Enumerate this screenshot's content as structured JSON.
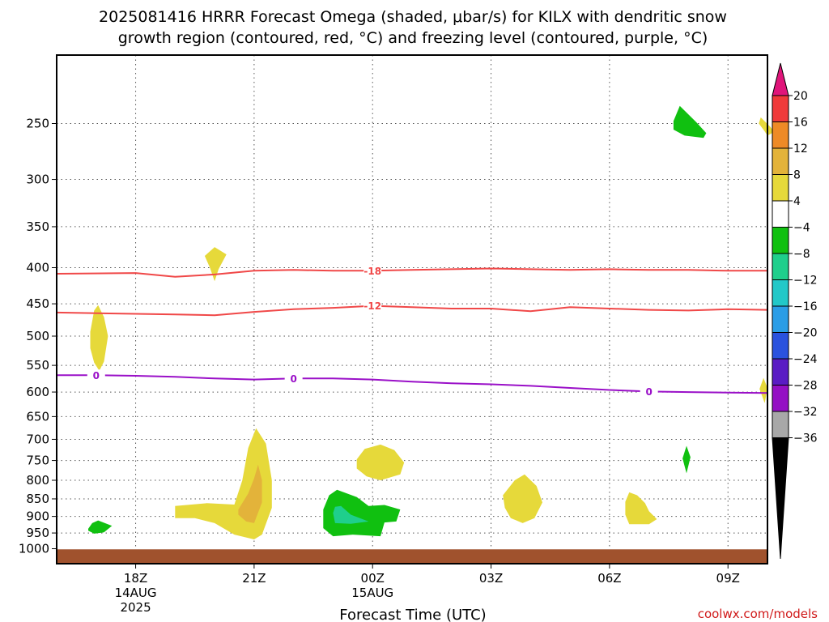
{
  "header": {
    "title_line1": "2025081416 HRRR Forecast Omega (shaded, μbar/s) for KILX with dendritic snow",
    "title_line2": "growth region (contoured, red, °C) and freezing level (contoured, purple, °C)"
  },
  "credit": "coolwx.com/models",
  "chart_data": {
    "type": "time-height contour",
    "title": "2025081416 HRRR Forecast Omega (shaded, μbar/s) for KILX with dendritic snow growth region (contoured, red, °C) and freezing level (contoured, purple, °C)",
    "xlabel": "Forecast Time (UTC)",
    "ylabel": "",
    "x_units": "hours since 2025081416 (16Z 14AUG 2025)",
    "xlim": [
      0,
      18
    ],
    "ylim_hpa": [
      1050,
      200
    ],
    "y_scale": "log pressure",
    "grid": true,
    "x_ticks": [
      {
        "x": 2,
        "label": "18Z",
        "sub1": "14AUG",
        "sub2": "2025"
      },
      {
        "x": 5,
        "label": "21Z",
        "sub1": "",
        "sub2": ""
      },
      {
        "x": 8,
        "label": "00Z",
        "sub1": "15AUG",
        "sub2": ""
      },
      {
        "x": 11,
        "label": "03Z",
        "sub1": "",
        "sub2": ""
      },
      {
        "x": 14,
        "label": "06Z",
        "sub1": "",
        "sub2": ""
      },
      {
        "x": 17,
        "label": "09Z",
        "sub1": "",
        "sub2": ""
      }
    ],
    "y_ticks": [
      250,
      300,
      350,
      400,
      450,
      500,
      550,
      600,
      650,
      700,
      750,
      800,
      850,
      900,
      950,
      1000
    ],
    "gridlines_p": [
      250,
      300,
      350,
      400,
      450,
      500,
      550,
      600,
      650,
      700,
      750,
      800,
      850,
      900,
      950
    ],
    "colorbar": {
      "labels": [
        "20",
        "16",
        "12",
        "8",
        "4",
        "−4",
        "−8",
        "−12",
        "−16",
        "−20",
        "−24",
        "−28",
        "−32",
        "−36"
      ],
      "colors": [
        "#f03a3a",
        "#ee8a26",
        "#e3b33a",
        "#e6d93a",
        "#ffffff",
        "#10c010",
        "#1fcf8c",
        "#22c8c8",
        "#2a9de6",
        "#2a52de",
        "#5a1cc4",
        "#9410c4",
        "#a8a8a8"
      ],
      "top_arrow_color": "#e0157a",
      "bottom_arrow_color": "#000000"
    },
    "contour_lines": [
      {
        "label": "-18",
        "color": "#f04848",
        "points": [
          [
            0,
            408
          ],
          [
            2,
            407
          ],
          [
            3,
            412
          ],
          [
            4,
            409
          ],
          [
            5,
            404
          ],
          [
            6,
            403
          ],
          [
            7,
            404
          ],
          [
            8,
            404
          ],
          [
            9,
            403
          ],
          [
            10,
            402
          ],
          [
            11,
            401
          ],
          [
            12,
            402
          ],
          [
            13,
            403
          ],
          [
            14,
            402
          ],
          [
            15,
            403
          ],
          [
            16,
            403
          ],
          [
            17,
            404
          ],
          [
            18,
            404
          ]
        ],
        "label_positions": [
          [
            8,
            404
          ]
        ]
      },
      {
        "label": "-12",
        "color": "#f04848",
        "points": [
          [
            0,
            463
          ],
          [
            2,
            465
          ],
          [
            3,
            466
          ],
          [
            4,
            467
          ],
          [
            5,
            462
          ],
          [
            6,
            458
          ],
          [
            7,
            456
          ],
          [
            8,
            453
          ],
          [
            9,
            455
          ],
          [
            10,
            457
          ],
          [
            11,
            457
          ],
          [
            12,
            461
          ],
          [
            13,
            455
          ],
          [
            14,
            457
          ],
          [
            15,
            459
          ],
          [
            16,
            460
          ],
          [
            17,
            458
          ],
          [
            18,
            459
          ]
        ],
        "label_positions": [
          [
            8,
            453
          ]
        ]
      },
      {
        "label": "0",
        "color": "#9a10c8",
        "points": [
          [
            0,
            568
          ],
          [
            1,
            568
          ],
          [
            2,
            569
          ],
          [
            3,
            571
          ],
          [
            4,
            574
          ],
          [
            5,
            576
          ],
          [
            6,
            574
          ],
          [
            7,
            574
          ],
          [
            8,
            576
          ],
          [
            9,
            580
          ],
          [
            10,
            583
          ],
          [
            11,
            585
          ],
          [
            12,
            588
          ],
          [
            13,
            592
          ],
          [
            14,
            596
          ],
          [
            15,
            599
          ],
          [
            16,
            600
          ],
          [
            17,
            601
          ],
          [
            18,
            602
          ]
        ],
        "label_positions": [
          [
            1,
            568
          ],
          [
            6,
            574
          ],
          [
            15,
            599
          ]
        ]
      }
    ],
    "shaded_regions": [
      {
        "value": "4 to 8",
        "color": "#e6d93a",
        "points": [
          [
            17.83,
            245
          ],
          [
            18.08,
            253
          ],
          [
            18.17,
            257
          ],
          [
            18.0,
            260
          ],
          [
            17.92,
            256
          ],
          [
            17.78,
            250
          ]
        ]
      },
      {
        "value": "4 to 8",
        "color": "#e6d93a",
        "points": [
          [
            0.85,
            493
          ],
          [
            0.95,
            460
          ],
          [
            1.05,
            452
          ],
          [
            1.2,
            470
          ],
          [
            1.3,
            500
          ],
          [
            1.2,
            543
          ],
          [
            1.08,
            560
          ],
          [
            0.95,
            545
          ],
          [
            0.85,
            520
          ]
        ]
      },
      {
        "value": "4 to 8",
        "color": "#e6d93a",
        "points": [
          [
            3.75,
            385
          ],
          [
            4.0,
            374
          ],
          [
            4.3,
            383
          ],
          [
            4.1,
            402
          ],
          [
            4.0,
            418
          ],
          [
            3.88,
            400
          ]
        ]
      },
      {
        "value": "4 to 8",
        "color": "#e6d93a",
        "points": [
          [
            7.6,
            747
          ],
          [
            7.8,
            722
          ],
          [
            8.2,
            712
          ],
          [
            8.55,
            725
          ],
          [
            8.8,
            755
          ],
          [
            8.7,
            785
          ],
          [
            8.2,
            800
          ],
          [
            7.85,
            790
          ],
          [
            7.6,
            770
          ]
        ]
      },
      {
        "value": "4 to 8",
        "color": "#e6d93a",
        "points": [
          [
            3.0,
            870
          ],
          [
            3.8,
            862
          ],
          [
            4.5,
            866
          ],
          [
            4.7,
            800
          ],
          [
            4.85,
            720
          ],
          [
            5.05,
            675
          ],
          [
            5.3,
            710
          ],
          [
            5.45,
            800
          ],
          [
            5.45,
            875
          ],
          [
            5.2,
            955
          ],
          [
            5.0,
            970
          ],
          [
            4.5,
            955
          ],
          [
            4.0,
            920
          ],
          [
            3.5,
            905
          ],
          [
            3.0,
            905
          ]
        ]
      },
      {
        "value": "4 to 8",
        "color": "#e6d93a",
        "points": [
          [
            11.3,
            840
          ],
          [
            11.6,
            800
          ],
          [
            11.85,
            785
          ],
          [
            12.15,
            815
          ],
          [
            12.3,
            860
          ],
          [
            12.1,
            905
          ],
          [
            11.8,
            920
          ],
          [
            11.5,
            905
          ],
          [
            11.35,
            875
          ]
        ]
      },
      {
        "value": "4 to 8",
        "color": "#e6d93a",
        "points": [
          [
            14.4,
            858
          ],
          [
            14.5,
            832
          ],
          [
            14.7,
            840
          ],
          [
            14.9,
            862
          ],
          [
            15.0,
            885
          ],
          [
            15.2,
            908
          ],
          [
            15.0,
            923
          ],
          [
            14.5,
            923
          ],
          [
            14.4,
            895
          ]
        ]
      },
      {
        "value": "4 to 8",
        "color": "#e6d93a",
        "points": [
          [
            17.8,
            594
          ],
          [
            17.9,
            573
          ],
          [
            18.0,
            592
          ],
          [
            17.93,
            622
          ]
        ]
      },
      {
        "value": "8 to 12",
        "color": "#e3b33a",
        "points": [
          [
            4.6,
            880
          ],
          [
            4.85,
            835
          ],
          [
            5.0,
            795
          ],
          [
            5.1,
            760
          ],
          [
            5.2,
            800
          ],
          [
            5.2,
            860
          ],
          [
            5.0,
            920
          ],
          [
            4.8,
            915
          ],
          [
            4.6,
            895
          ]
        ]
      },
      {
        "value": "-4 to -8",
        "color": "#10c010",
        "points": [
          [
            15.62,
            248
          ],
          [
            15.78,
            236
          ],
          [
            16.2,
            249
          ],
          [
            16.45,
            258
          ],
          [
            16.38,
            262
          ],
          [
            15.9,
            260
          ],
          [
            15.62,
            255
          ]
        ]
      },
      {
        "value": "-4 to -8",
        "color": "#10c010",
        "points": [
          [
            0.8,
            937
          ],
          [
            0.9,
            920
          ],
          [
            1.05,
            912
          ],
          [
            1.4,
            928
          ],
          [
            1.2,
            948
          ],
          [
            0.95,
            952
          ],
          [
            0.8,
            943
          ]
        ]
      },
      {
        "value": "-4 to -8",
        "color": "#10c010",
        "points": [
          [
            6.75,
            880
          ],
          [
            6.9,
            840
          ],
          [
            7.1,
            825
          ],
          [
            7.6,
            845
          ],
          [
            7.9,
            870
          ],
          [
            8.3,
            867
          ],
          [
            8.7,
            880
          ],
          [
            8.6,
            915
          ],
          [
            8.3,
            918
          ],
          [
            8.2,
            960
          ],
          [
            7.5,
            955
          ],
          [
            7.0,
            960
          ],
          [
            6.75,
            935
          ]
        ]
      },
      {
        "value": "-4 to -8",
        "color": "#10c010",
        "points": [
          [
            15.85,
            745
          ],
          [
            15.95,
            715
          ],
          [
            16.05,
            742
          ],
          [
            15.95,
            782
          ]
        ]
      },
      {
        "value": "-8 to -12",
        "color": "#1fcf8c",
        "points": [
          [
            7.0,
            890
          ],
          [
            7.05,
            872
          ],
          [
            7.2,
            870
          ],
          [
            7.45,
            895
          ],
          [
            7.9,
            915
          ],
          [
            7.45,
            922
          ],
          [
            7.05,
            920
          ]
        ]
      }
    ],
    "ground_color": "#a0522d",
    "ground_top_p": 1002
  }
}
